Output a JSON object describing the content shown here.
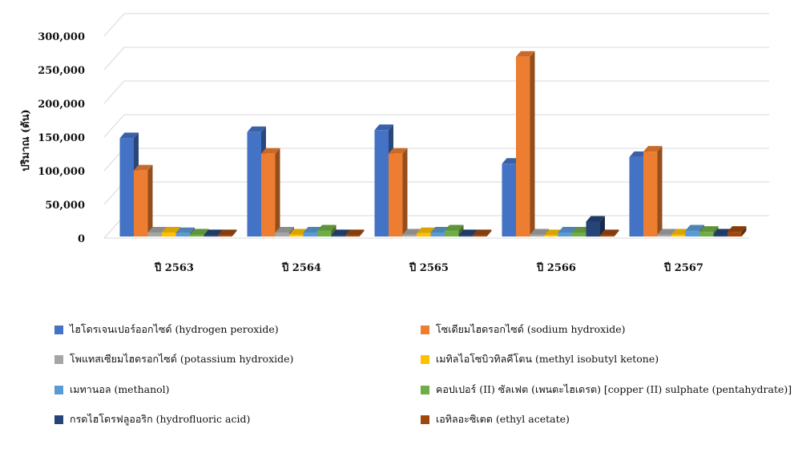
{
  "chart_data": {
    "type": "bar",
    "style": "3d-clustered-column",
    "ylabel": "ปริมาณ (ตัน)",
    "xlabel": "",
    "ylim": [
      0,
      300000
    ],
    "yticks": [
      "0",
      "50,000",
      "100,000",
      "150,000",
      "200,000",
      "250,000",
      "300,000"
    ],
    "ytick_values": [
      0,
      50000,
      100000,
      150000,
      200000,
      250000,
      300000
    ],
    "grid": true,
    "legend_position": "bottom",
    "categories": [
      "ปี 2563",
      "ปี 2564",
      "ปี 2565",
      "ปี 2566",
      "ปี 2567"
    ],
    "series": [
      {
        "name": "ไฮโดรเจนเปอร์ออกไซด์ (hydrogen peroxide)",
        "color": "#4472C4",
        "values": [
          146000,
          155000,
          158000,
          108000,
          118000
        ]
      },
      {
        "name": "โซเดียมไฮดรอกไซด์ (sodium hydroxide)",
        "color": "#ED7D31",
        "values": [
          98000,
          123000,
          123000,
          267000,
          126000
        ]
      },
      {
        "name": "โพแทสเซียมไฮดรอกไซด์ (potassium hydroxide)",
        "color": "#A5A5A5",
        "values": [
          6000,
          6000,
          3000,
          3000,
          3000
        ]
      },
      {
        "name": "เมทิลไอโซบิวทิลคีโตน (methyl isobutyl ketone)",
        "color": "#FFC000",
        "values": [
          6000,
          3000,
          5000,
          2000,
          3000
        ]
      },
      {
        "name": "เมทานอล (methanol)",
        "color": "#5B9BD5",
        "values": [
          5000,
          6000,
          6000,
          6000,
          9000
        ]
      },
      {
        "name": "คอปเปอร์ (II) ซัลเฟต (เพนตะไฮเดรต) [copper (II) sulphate (pentahydrate)]",
        "color": "#70AD47",
        "values": [
          3000,
          9000,
          9000,
          6000,
          7000
        ]
      },
      {
        "name": "กรดไฮโดรฟลูออริก (hydrofluoric acid)",
        "color": "#264478",
        "values": [
          2000,
          2000,
          2000,
          22000,
          3000
        ]
      },
      {
        "name": "เอทิลอะซิเตต (ethyl acetate)",
        "color": "#9E480E",
        "values": [
          2000,
          2000,
          2000,
          2000,
          7000
        ]
      }
    ]
  }
}
